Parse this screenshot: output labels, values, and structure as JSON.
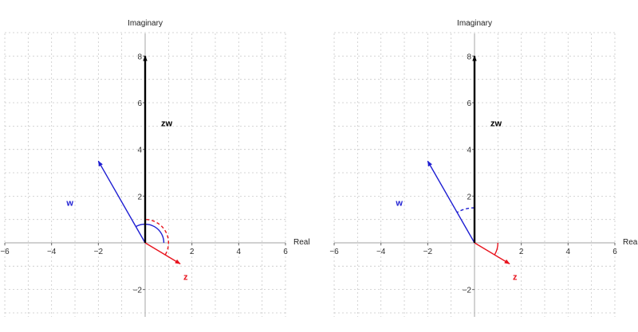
{
  "colors": {
    "grid": "#c8c8c8",
    "axis": "#b4b4b4",
    "z": "#e8141e",
    "w": "#1e1ed2",
    "zw": "#000000"
  },
  "chart_data": [
    {
      "type": "vector-plot",
      "xlabel": "Real",
      "ylabel": "Imaginary",
      "xlim": [
        -6,
        6
      ],
      "ylim": [
        -3,
        9
      ],
      "xticks": [
        -6,
        -4,
        -2,
        2,
        4,
        6
      ],
      "yticks": [
        -2,
        2,
        4,
        6,
        8
      ],
      "grid": true,
      "vectors": [
        {
          "name": "z",
          "re": 1.5,
          "im": -0.9,
          "color_key": "z"
        },
        {
          "name": "w",
          "re": -2.0,
          "im": 3.5,
          "color_key": "w"
        },
        {
          "name": "zw",
          "re": 0.0,
          "im": 8.0,
          "color_key": "zw"
        }
      ],
      "angle_arcs": [
        {
          "vector": "w",
          "style": "solid",
          "color_key": "w",
          "from_deg": 0,
          "to_deg": 120,
          "radius": 0.8
        },
        {
          "vector": "zw",
          "style": "dashed",
          "color_key": "z",
          "from_deg": -30,
          "to_deg": 90,
          "radius": 1.0
        }
      ]
    },
    {
      "type": "vector-plot",
      "xlabel": "Real",
      "ylabel": "Imaginary",
      "xlim": [
        -6,
        6
      ],
      "ylim": [
        -3,
        9
      ],
      "xticks": [
        -6,
        -4,
        -2,
        2,
        4,
        6
      ],
      "yticks": [
        -2,
        2,
        4,
        6,
        8
      ],
      "grid": true,
      "vectors": [
        {
          "name": "z",
          "re": 1.5,
          "im": -0.9,
          "color_key": "z"
        },
        {
          "name": "w",
          "re": -2.0,
          "im": 3.5,
          "color_key": "w"
        },
        {
          "name": "zw",
          "re": 0.0,
          "im": 8.0,
          "color_key": "zw"
        }
      ],
      "angle_arcs": [
        {
          "vector": "z",
          "style": "solid",
          "color_key": "z",
          "from_deg": -30,
          "to_deg": 0,
          "radius": 1.0
        },
        {
          "vector": "zw",
          "style": "dashed",
          "color_key": "w",
          "from_deg": 90,
          "to_deg": 120,
          "radius": 1.5
        }
      ]
    }
  ]
}
